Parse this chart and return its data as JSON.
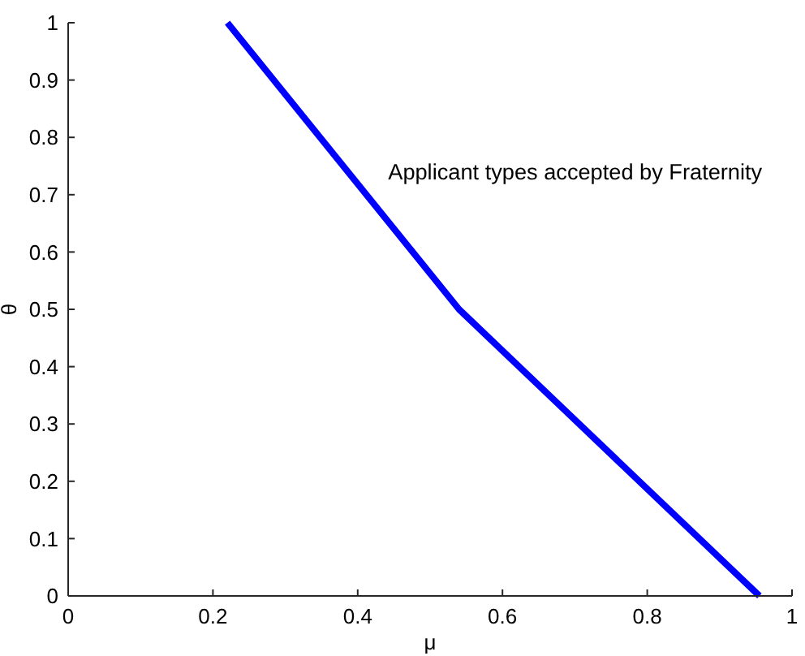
{
  "chart_data": {
    "type": "line",
    "xlabel": "μ",
    "ylabel": "θ",
    "x": [
      0.22,
      0.54,
      0.955
    ],
    "series": [
      {
        "color": "#0000ff",
        "values": [
          1,
          0.5,
          0
        ]
      }
    ],
    "xlim": [
      0,
      1
    ],
    "xticks": [
      0,
      0.2,
      0.4,
      0.6,
      0.8,
      1
    ],
    "ylim": [
      0,
      1
    ],
    "yticks": [
      0,
      0.1,
      0.2,
      0.3,
      0.4,
      0.5,
      0.6,
      0.7,
      0.8,
      0.9,
      1
    ],
    "grid": false,
    "marker": "none",
    "line_style": "solid",
    "annotations": [
      "Applicant types accepted by Fraternity"
    ]
  }
}
